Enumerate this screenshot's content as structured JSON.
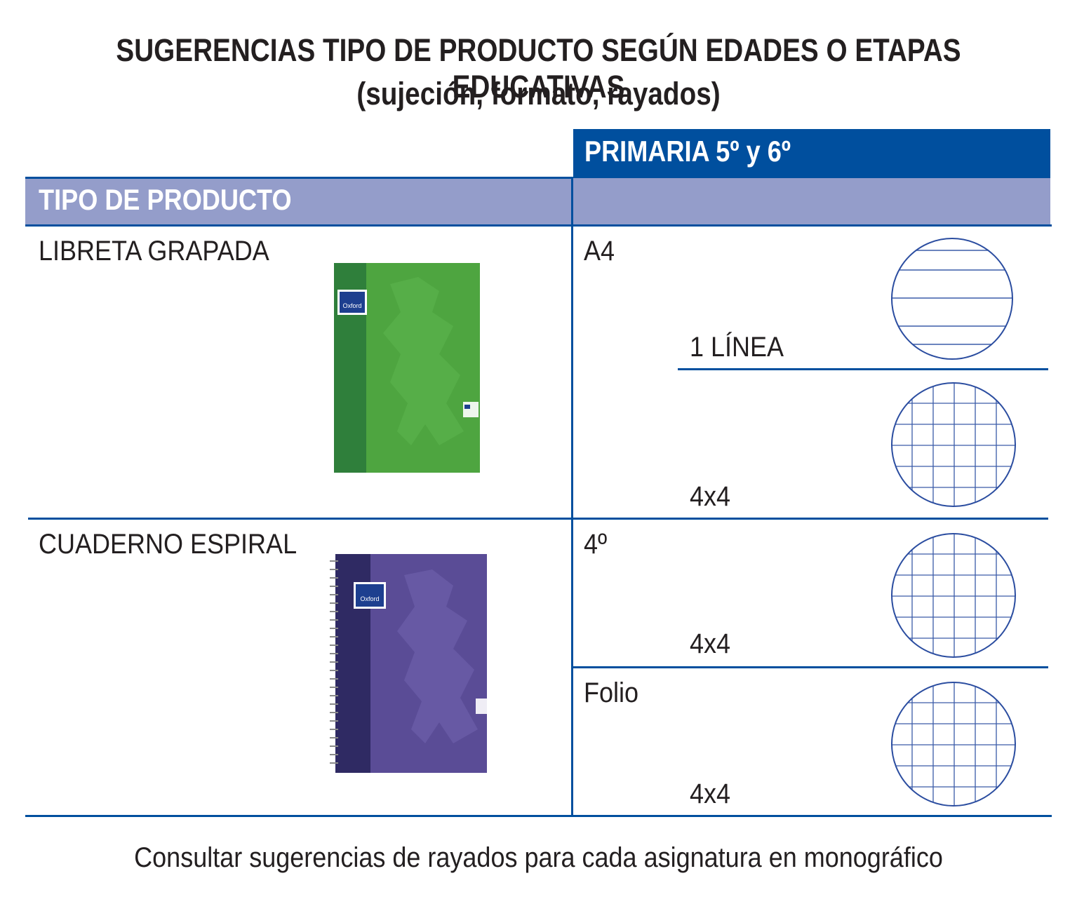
{
  "title": {
    "line1": "SUGERENCIAS TIPO DE PRODUCTO SEGÚN EDADES O ETAPAS EDUCATIVAS",
    "line2": "(sujeción, formato, rayados)"
  },
  "header": {
    "column_title": "PRIMARIA 5º y 6º",
    "row_header": "TIPO DE PRODUCTO"
  },
  "products": [
    {
      "name": "LIBRETA GRAPADA",
      "notebook_color": "#4ea540",
      "formats": [
        {
          "size": "A4",
          "rulings": [
            "1 LÍNEA",
            "4x4"
          ]
        }
      ]
    },
    {
      "name": "CUADERNO ESPIRAL",
      "notebook_color": "#5a4c96",
      "formats": [
        {
          "size": "4º",
          "rulings": [
            "4x4"
          ]
        },
        {
          "size": "Folio",
          "rulings": [
            "4x4"
          ]
        }
      ]
    }
  ],
  "brand_label": "Oxford",
  "footer": "Consultar sugerencias de rayados para cada asignatura en monográfico",
  "colors": {
    "accent_blue": "#004f9e",
    "header_band": "#949dca",
    "text": "#231f20",
    "ruling_blue": "#3a5ba8"
  }
}
